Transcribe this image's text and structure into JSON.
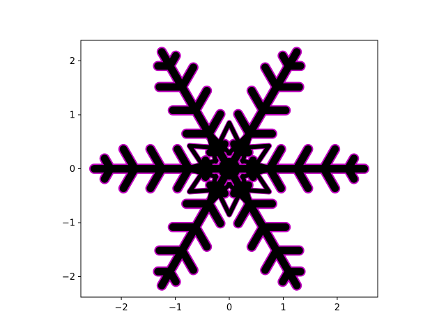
{
  "chart_data": {
    "type": "line",
    "title": "",
    "xlabel": "",
    "ylabel": "",
    "xlim": [
      -2.75,
      2.75
    ],
    "ylim": [
      -2.38,
      2.38
    ],
    "grid": false,
    "legend": "none",
    "aspect": "equal",
    "xticks": [
      -2,
      -1,
      0,
      1,
      2
    ],
    "yticks": [
      -2,
      -1,
      0,
      1,
      2
    ],
    "xtick_labels": [
      "−2",
      "−1",
      "0",
      "1",
      "2"
    ],
    "ytick_labels": [
      "−2",
      "−1",
      "0",
      "1",
      "2"
    ],
    "figure": {
      "description": "Hexagonal snowflake drawn as thick black strokes with magenta outline",
      "symmetry": 6,
      "arm_length": 2.5,
      "branches": [
        {
          "start": 0.35,
          "length": 0.18
        },
        {
          "start": 0.75,
          "length": 0.42
        },
        {
          "start": 1.25,
          "length": 0.42
        },
        {
          "start": 1.75,
          "length": 0.42
        },
        {
          "start": 2.2,
          "length": 0.22
        }
      ],
      "inner_hexagram_outer_radius": 0.85,
      "inner_hexagram_inner_radius": 0.45,
      "inner_spike_radius": 0.8,
      "inner_spike_base_radius": 0.15,
      "center_dot_radius": 0.2,
      "stroke_color": "#000000",
      "outline_color": "#bf00bf"
    }
  }
}
